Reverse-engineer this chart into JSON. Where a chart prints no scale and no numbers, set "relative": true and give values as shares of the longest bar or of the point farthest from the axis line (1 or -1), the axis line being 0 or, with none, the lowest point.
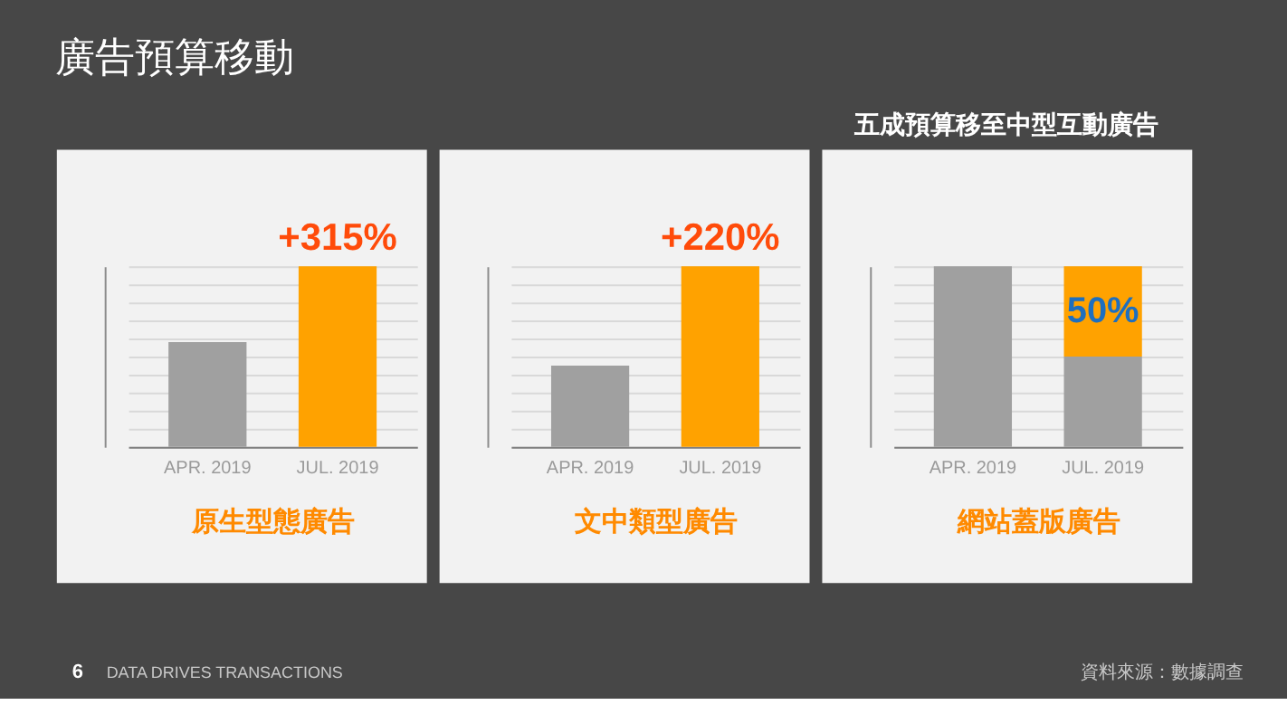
{
  "chart_data": [
    {
      "type": "other",
      "title": "廣告預算移動",
      "annotations": [
        "6",
        "DATA DRIVES TRANSACTIONS",
        "資料來源：數據調查"
      ]
    },
    {
      "type": "bar",
      "xlabel": "原生型態廣告",
      "categories": [
        "APR. 2019",
        "JUL. 2019"
      ],
      "relative": true,
      "values": [
        0.58,
        1
      ],
      "colors": [
        "#a0a0a0",
        "#ffa200"
      ],
      "grid": "y",
      "annotations": [
        {
          "text": "+315%",
          "x": "JUL. 2019",
          "y": 1
        }
      ]
    },
    {
      "type": "bar",
      "xlabel": "文中類型廣告",
      "categories": [
        "APR. 2019",
        "JUL. 2019"
      ],
      "relative": true,
      "values": [
        0.45,
        1
      ],
      "colors": [
        "#a0a0a0",
        "#ffa200"
      ],
      "grid": "y",
      "annotations": [
        {
          "text": "+220%",
          "x": "JUL. 2019",
          "y": 1
        }
      ]
    },
    {
      "type": "bar",
      "xlabel": "網站蓋版廣告",
      "categories": [
        "APR. 2019",
        "JUL. 2019"
      ],
      "stacked": true,
      "ylim": [
        0,
        100
      ],
      "tick_labels": "x",
      "series": [
        {
          "color": "#a0a0a0",
          "values": [
            100,
            50
          ]
        },
        {
          "color": "#ffa200",
          "values": [
            null,
            50
          ],
          "value_labels": [
            null,
            "50%"
          ]
        }
      ],
      "grid": "y",
      "annotations": [
        "五成預算移至中型互動廣告"
      ]
    }
  ]
}
